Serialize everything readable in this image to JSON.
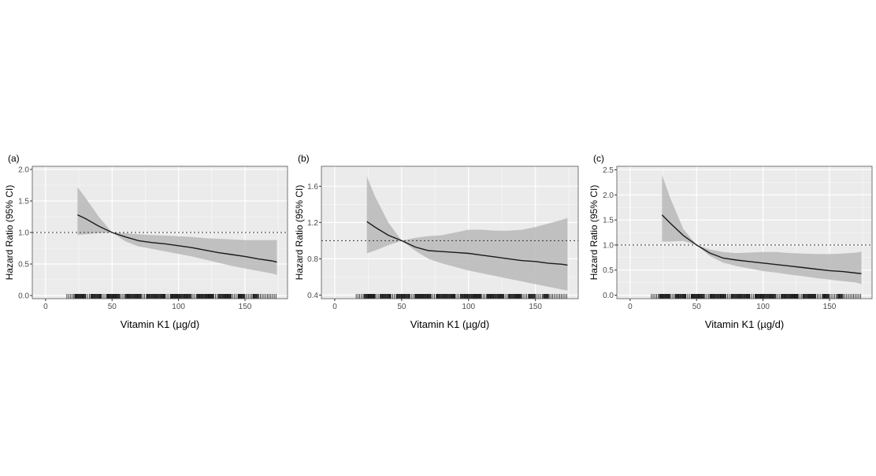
{
  "chart_data": [
    {
      "type": "line",
      "panel_label": "(a)",
      "xlabel": "Vitamin K1 (µg/d)",
      "ylabel": "Hazard Ratio (95% CI)",
      "xlim": [
        -10,
        182
      ],
      "ylim": [
        -0.05,
        2.05
      ],
      "xticks": [
        0,
        50,
        100,
        150
      ],
      "yticks": [
        0.0,
        0.5,
        1.0,
        1.5,
        2.0
      ],
      "ytick_labels": [
        "0.0",
        "0.5",
        "1.0",
        "1.5",
        "2.0"
      ],
      "reference_line": 1.0,
      "grid": true,
      "series": [
        {
          "x": [
            24,
            30,
            40,
            50,
            60,
            70,
            80,
            90,
            100,
            110,
            120,
            130,
            140,
            150,
            160,
            170,
            174
          ],
          "y": [
            1.28,
            1.22,
            1.1,
            1.0,
            0.93,
            0.87,
            0.84,
            0.82,
            0.79,
            0.76,
            0.72,
            0.68,
            0.65,
            0.62,
            0.58,
            0.55,
            0.53
          ],
          "lower": [
            0.96,
            0.97,
            0.99,
            1.0,
            0.86,
            0.78,
            0.74,
            0.7,
            0.66,
            0.62,
            0.57,
            0.52,
            0.47,
            0.43,
            0.39,
            0.35,
            0.33
          ],
          "upper": [
            1.72,
            1.55,
            1.25,
            1.0,
            0.99,
            0.97,
            0.96,
            0.95,
            0.94,
            0.93,
            0.91,
            0.9,
            0.89,
            0.88,
            0.88,
            0.88,
            0.88
          ]
        }
      ],
      "rug": {
        "from": 16,
        "to": 174,
        "dense": [
          [
            22,
            30
          ],
          [
            34,
            42
          ],
          [
            46,
            56
          ],
          [
            60,
            72
          ],
          [
            76,
            90
          ],
          [
            94,
            110
          ],
          [
            114,
            126
          ],
          [
            130,
            140
          ],
          [
            145,
            150
          ],
          [
            156,
            160
          ]
        ]
      }
    },
    {
      "type": "line",
      "panel_label": "(b)",
      "xlabel": "Vitamin K1 (µg/d)",
      "ylabel": "Hazard Ratio (95% CI)",
      "xlim": [
        -10,
        182
      ],
      "ylim": [
        0.36,
        1.82
      ],
      "xticks": [
        0,
        50,
        100,
        150
      ],
      "yticks": [
        0.4,
        0.8,
        1.2,
        1.6
      ],
      "ytick_labels": [
        "0.4",
        "0.8",
        "1.2",
        "1.6"
      ],
      "reference_line": 1.0,
      "grid": true,
      "series": [
        {
          "x": [
            24,
            30,
            40,
            50,
            60,
            70,
            80,
            90,
            100,
            110,
            120,
            130,
            140,
            150,
            160,
            170,
            174
          ],
          "y": [
            1.21,
            1.15,
            1.06,
            1.0,
            0.93,
            0.89,
            0.88,
            0.87,
            0.86,
            0.84,
            0.82,
            0.8,
            0.78,
            0.77,
            0.75,
            0.74,
            0.73
          ],
          "lower": [
            0.86,
            0.89,
            0.95,
            1.0,
            0.89,
            0.8,
            0.75,
            0.71,
            0.67,
            0.64,
            0.61,
            0.58,
            0.55,
            0.52,
            0.49,
            0.46,
            0.45
          ],
          "upper": [
            1.71,
            1.49,
            1.2,
            1.0,
            1.03,
            1.05,
            1.06,
            1.09,
            1.12,
            1.12,
            1.11,
            1.11,
            1.12,
            1.15,
            1.19,
            1.23,
            1.25
          ]
        }
      ],
      "rug": {
        "from": 16,
        "to": 174,
        "dense": [
          [
            22,
            30
          ],
          [
            34,
            42
          ],
          [
            46,
            56
          ],
          [
            60,
            72
          ],
          [
            76,
            90
          ],
          [
            94,
            110
          ],
          [
            114,
            126
          ],
          [
            130,
            140
          ],
          [
            145,
            150
          ],
          [
            156,
            160
          ]
        ]
      }
    },
    {
      "type": "line",
      "panel_label": "(c)",
      "xlabel": "Vitamin K1 (µg/d)",
      "ylabel": "Hazard Ratio (95% CI)",
      "xlim": [
        -10,
        182
      ],
      "ylim": [
        -0.07,
        2.57
      ],
      "xticks": [
        0,
        50,
        100,
        150
      ],
      "yticks": [
        0.0,
        0.5,
        1.0,
        1.5,
        2.0,
        2.5
      ],
      "ytick_labels": [
        "0.0",
        "0.5",
        "1.0",
        "1.5",
        "2.0",
        "2.5"
      ],
      "reference_line": 1.0,
      "grid": true,
      "series": [
        {
          "x": [
            24,
            30,
            40,
            50,
            60,
            70,
            80,
            90,
            100,
            110,
            120,
            130,
            140,
            150,
            160,
            170,
            174
          ],
          "y": [
            1.6,
            1.44,
            1.19,
            1.0,
            0.84,
            0.74,
            0.7,
            0.67,
            0.64,
            0.61,
            0.58,
            0.55,
            0.52,
            0.49,
            0.47,
            0.44,
            0.43
          ],
          "lower": [
            1.07,
            1.07,
            1.08,
            1.0,
            0.78,
            0.65,
            0.58,
            0.53,
            0.48,
            0.45,
            0.41,
            0.38,
            0.34,
            0.31,
            0.28,
            0.25,
            0.22
          ],
          "upper": [
            2.4,
            1.95,
            1.32,
            1.0,
            0.91,
            0.86,
            0.84,
            0.85,
            0.86,
            0.86,
            0.84,
            0.83,
            0.82,
            0.82,
            0.83,
            0.85,
            0.87
          ]
        }
      ],
      "rug": {
        "from": 16,
        "to": 174,
        "dense": [
          [
            22,
            30
          ],
          [
            34,
            42
          ],
          [
            46,
            56
          ],
          [
            60,
            72
          ],
          [
            76,
            90
          ],
          [
            94,
            110
          ],
          [
            114,
            126
          ],
          [
            130,
            140
          ],
          [
            145,
            150
          ],
          [
            156,
            160
          ]
        ]
      }
    }
  ],
  "colors": {
    "panel_background": "#ebebeb",
    "grid_line": "#ffffff",
    "confidence_band": "#b8b8b8",
    "curve": "#1a1a1a",
    "reference_line": "#333333",
    "rug": "#111111",
    "tick_text": "#4d4d4d",
    "label_text": "#000000"
  }
}
